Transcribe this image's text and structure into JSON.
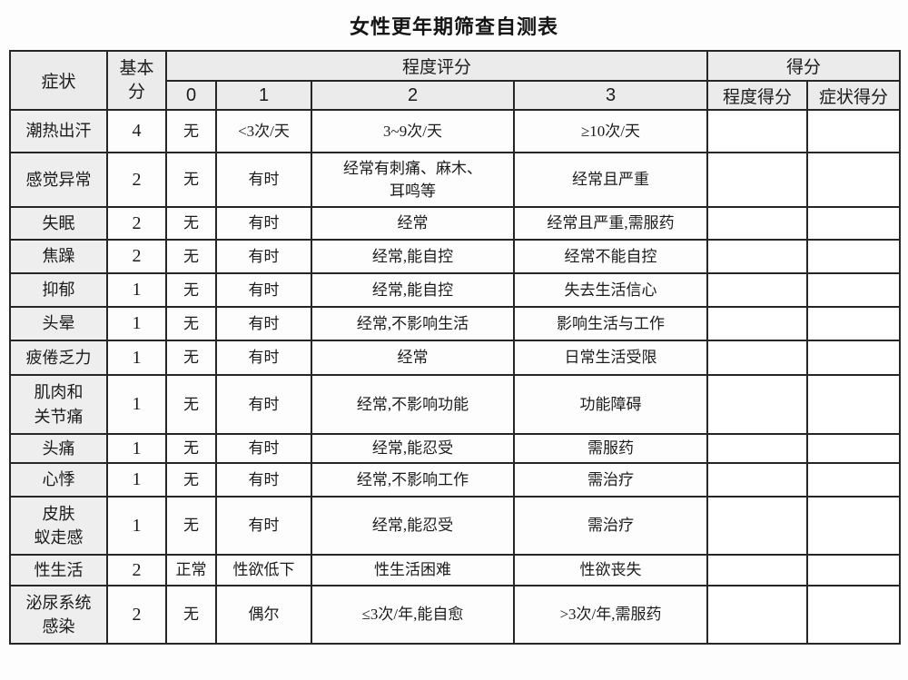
{
  "title": "女性更年期筛查自测表",
  "table": {
    "header": {
      "symptom": "症状",
      "base_score": "基本\n分",
      "degree_rating": "程度评分",
      "score": "得分",
      "degree_levels": [
        "0",
        "1",
        "2",
        "3"
      ],
      "degree_score": "程度得分",
      "symptom_score": "症状得分"
    },
    "rows": [
      {
        "symptom": "潮热出汗",
        "base": "4",
        "d0": "无",
        "d1": "<3次/天",
        "d2": "3~9次/天",
        "d3": "≥10次/天"
      },
      {
        "symptom": "感觉异常",
        "base": "2",
        "d0": "无",
        "d1": "有时",
        "d2": "经常有刺痛、麻木、\n耳鸣等",
        "d3": "经常且严重"
      },
      {
        "symptom": "失眠",
        "base": "2",
        "d0": "无",
        "d1": "有时",
        "d2": "经常",
        "d3": "经常且严重,需服药"
      },
      {
        "symptom": "焦躁",
        "base": "2",
        "d0": "无",
        "d1": "有时",
        "d2": "经常,能自控",
        "d3": "经常不能自控"
      },
      {
        "symptom": "抑郁",
        "base": "1",
        "d0": "无",
        "d1": "有时",
        "d2": "经常,能自控",
        "d3": "失去生活信心"
      },
      {
        "symptom": "头晕",
        "base": "1",
        "d0": "无",
        "d1": "有时",
        "d2": "经常,不影响生活",
        "d3": "影响生活与工作"
      },
      {
        "symptom": "疲倦乏力",
        "base": "1",
        "d0": "无",
        "d1": "有时",
        "d2": "经常",
        "d3": "日常生活受限"
      },
      {
        "symptom": "肌肉和\n关节痛",
        "base": "1",
        "d0": "无",
        "d1": "有时",
        "d2": "经常,不影响功能",
        "d3": "功能障碍"
      },
      {
        "symptom": "头痛",
        "base": "1",
        "d0": "无",
        "d1": "有时",
        "d2": "经常,能忍受",
        "d3": "需服药"
      },
      {
        "symptom": "心悸",
        "base": "1",
        "d0": "无",
        "d1": "有时",
        "d2": "经常,不影响工作",
        "d3": "需治疗"
      },
      {
        "symptom": "皮肤\n蚁走感",
        "base": "1",
        "d0": "无",
        "d1": "有时",
        "d2": "经常,能忍受",
        "d3": "需治疗"
      },
      {
        "symptom": "性生活",
        "base": "2",
        "d0": "正常",
        "d1": "性欲低下",
        "d2": "性生活困难",
        "d3": "性欲丧失"
      },
      {
        "symptom": "泌尿系统\n感染",
        "base": "2",
        "d0": "无",
        "d1": "偶尔",
        "d2": "≤3次/年,能自愈",
        "d3": ">3次/年,需服药"
      }
    ],
    "colors": {
      "header_bg": "#ebebeb",
      "symptom_col_bg": "#eeeeee",
      "border": "#262626",
      "text": "#1b1b1b"
    }
  }
}
